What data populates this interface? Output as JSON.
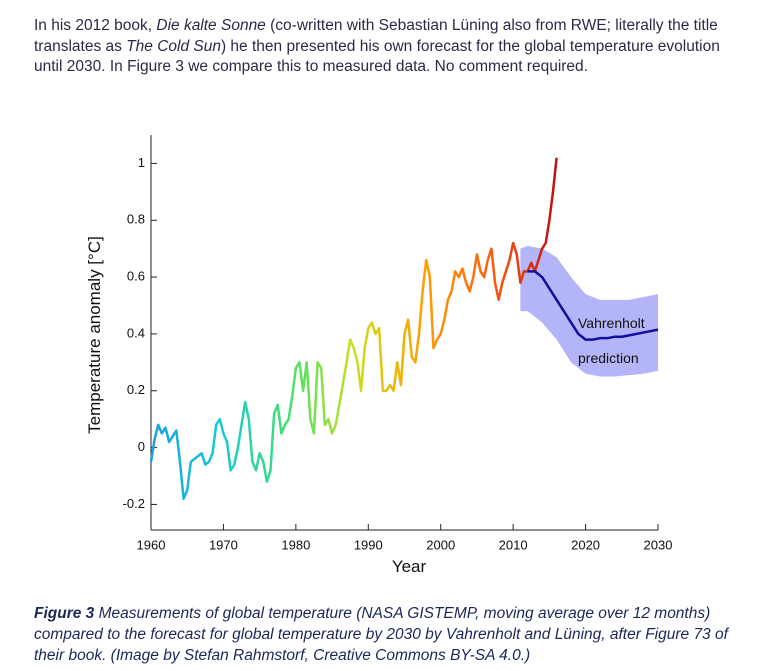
{
  "paragraph": {
    "parts": [
      {
        "text": "In his 2012 book, ",
        "italic": false
      },
      {
        "text": "Die kalte Sonne",
        "italic": true
      },
      {
        "text": " (co-written with Sebastian Lüning also from RWE; literally the title translates as ",
        "italic": false
      },
      {
        "text": "The Cold Sun",
        "italic": true
      },
      {
        "text": ") he then presented his own forecast for the global temperature evolution until 2030. In Figure 3 we compare this to measured data. No comment required.",
        "italic": false
      }
    ]
  },
  "chart_data": {
    "type": "line",
    "ylabel": "Temperature anomaly [°C]",
    "xlabel": "Year",
    "xlim": [
      1960,
      2030
    ],
    "xticks": [
      1960,
      1970,
      1980,
      1990,
      2000,
      2010,
      2020,
      2030
    ],
    "ylim": [
      -0.29,
      1.1
    ],
    "yticks": [
      -0.2,
      0,
      0.2,
      0.4,
      0.6,
      0.8,
      1
    ],
    "series": [
      {
        "name": "Measurements",
        "colors": [
          "#1aa0e0",
          "#16c8d8",
          "#40e070",
          "#c8e020",
          "#ffa000",
          "#ff6010",
          "#c01010"
        ],
        "x": [
          1960,
          1960.5,
          1961,
          1961.5,
          1962,
          1962.5,
          1963,
          1963.5,
          1964,
          1964.5,
          1965,
          1965.5,
          1966,
          1967,
          1967.5,
          1968,
          1968.5,
          1969,
          1969.5,
          1970,
          1970.5,
          1971,
          1971.5,
          1972,
          1972.5,
          1973,
          1973.5,
          1974,
          1974.5,
          1975,
          1975.5,
          1976,
          1976.5,
          1977,
          1977.5,
          1978,
          1978.5,
          1979,
          1979.5,
          1980,
          1980.5,
          1981,
          1981.5,
          1982,
          1982.5,
          1983,
          1983.5,
          1984,
          1984.5,
          1985,
          1985.5,
          1986,
          1987,
          1987.5,
          1988,
          1988.5,
          1989,
          1989.5,
          1990,
          1990.5,
          1991,
          1991.5,
          1992,
          1992.5,
          1993,
          1993.5,
          1994,
          1994.5,
          1995,
          1995.5,
          1996,
          1996.5,
          1997,
          1997.5,
          1998,
          1998.5,
          1999,
          1999.5,
          2000,
          2000.5,
          2001,
          2001.5,
          2002,
          2002.5,
          2003,
          2003.5,
          2004,
          2004.5,
          2005,
          2005.5,
          2006,
          2006.5,
          2007,
          2007.5,
          2008,
          2008.5,
          2009,
          2009.5,
          2010,
          2010.5,
          2011,
          2011.5,
          2012,
          2012.5,
          2013,
          2013.5,
          2014,
          2014.5,
          2015,
          2015.5,
          2016
        ],
        "values": [
          -0.05,
          0.03,
          0.08,
          0.05,
          0.07,
          0.02,
          0.04,
          0.06,
          -0.05,
          -0.18,
          -0.15,
          -0.05,
          -0.04,
          -0.02,
          -0.06,
          -0.05,
          -0.02,
          0.08,
          0.1,
          0.05,
          0.02,
          -0.08,
          -0.06,
          0.0,
          0.08,
          0.16,
          0.1,
          -0.05,
          -0.08,
          -0.02,
          -0.05,
          -0.12,
          -0.08,
          0.12,
          0.15,
          0.05,
          0.08,
          0.1,
          0.18,
          0.28,
          0.3,
          0.2,
          0.3,
          0.1,
          0.05,
          0.3,
          0.28,
          0.08,
          0.1,
          0.05,
          0.08,
          0.15,
          0.3,
          0.38,
          0.35,
          0.3,
          0.2,
          0.35,
          0.42,
          0.44,
          0.4,
          0.42,
          0.2,
          0.2,
          0.22,
          0.2,
          0.3,
          0.22,
          0.4,
          0.45,
          0.32,
          0.3,
          0.4,
          0.55,
          0.66,
          0.6,
          0.35,
          0.38,
          0.4,
          0.45,
          0.52,
          0.55,
          0.62,
          0.6,
          0.63,
          0.58,
          0.55,
          0.6,
          0.68,
          0.62,
          0.6,
          0.66,
          0.7,
          0.58,
          0.52,
          0.58,
          0.62,
          0.66,
          0.72,
          0.68,
          0.58,
          0.62,
          0.62,
          0.65,
          0.62,
          0.66,
          0.7,
          0.72,
          0.8,
          0.9,
          1.02
        ]
      },
      {
        "name": "Vahrenholt prediction",
        "color": "#1010a0",
        "x": [
          2012,
          2013,
          2014,
          2015,
          2016,
          2017,
          2018,
          2019,
          2020,
          2021,
          2022,
          2023,
          2024,
          2025,
          2026,
          2027,
          2028,
          2029,
          2030
        ],
        "values": [
          0.62,
          0.62,
          0.6,
          0.56,
          0.52,
          0.48,
          0.44,
          0.4,
          0.38,
          0.38,
          0.385,
          0.385,
          0.39,
          0.39,
          0.395,
          0.4,
          0.405,
          0.41,
          0.415
        ]
      }
    ],
    "band": {
      "color": "#b4b4f8",
      "x": [
        2011,
        2012,
        2014,
        2016,
        2018,
        2020,
        2022,
        2024,
        2026,
        2028,
        2030
      ],
      "lower": [
        0.48,
        0.48,
        0.44,
        0.38,
        0.3,
        0.26,
        0.25,
        0.25,
        0.255,
        0.26,
        0.27
      ],
      "upper": [
        0.7,
        0.71,
        0.7,
        0.67,
        0.6,
        0.54,
        0.52,
        0.52,
        0.52,
        0.53,
        0.54
      ]
    },
    "annotations": [
      "Vahrenholt",
      "prediction"
    ]
  },
  "caption": {
    "label": "Figure 3",
    "text": " Measurements of global temperature (NASA GISTEMP, moving average over 12 months) compared to the forecast for global temperature by 2030 by Vahrenholt and Lüning, after Figure 73 of their book. (Image by Stefan Rahmstorf, Creative Commons BY-SA 4.0.)"
  }
}
